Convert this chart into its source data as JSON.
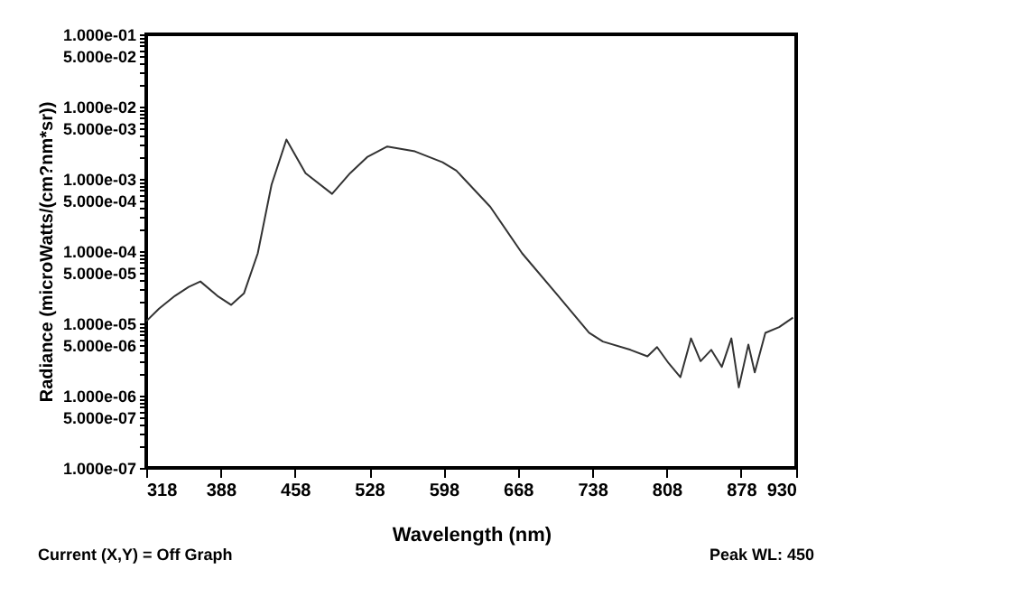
{
  "chart_data": {
    "type": "line",
    "xlabel": "Wavelength (nm)",
    "ylabel": "Radiance (microWatts/(cm?nm*sr))",
    "annotations": [
      "Current (X,Y) = Off Graph",
      "Peak WL:  450"
    ],
    "log": true,
    "grid": false,
    "marker": "none",
    "line_style": "solid",
    "xlim": [
      318,
      930
    ],
    "xticks": [
      318,
      388,
      458,
      528,
      598,
      668,
      738,
      808,
      878,
      930
    ],
    "ylim": [
      1e-07,
      0.1
    ],
    "yticks": [
      {
        "value": 0.1,
        "label": "1.000e-01"
      },
      {
        "value": 0.05,
        "label": "5.000e-02"
      },
      {
        "value": 0.01,
        "label": "1.000e-02"
      },
      {
        "value": 0.005,
        "label": "5.000e-03"
      },
      {
        "value": 0.001,
        "label": "1.000e-03"
      },
      {
        "value": 0.0005,
        "label": "5.000e-04"
      },
      {
        "value": 0.0001,
        "label": "1.000e-04"
      },
      {
        "value": 5e-05,
        "label": "5.000e-05"
      },
      {
        "value": 1e-05,
        "label": "1.000e-05"
      },
      {
        "value": 5e-06,
        "label": "5.000e-06"
      },
      {
        "value": 1e-06,
        "label": "1.000e-06"
      },
      {
        "value": 5e-07,
        "label": "5.000e-07"
      },
      {
        "value": 1e-07,
        "label": "1.000e-07"
      },
      {
        "value": 0.02,
        "label": null
      },
      {
        "value": 0.03,
        "label": null
      },
      {
        "value": 0.04,
        "label": null
      },
      {
        "value": 0.06,
        "label": null
      },
      {
        "value": 0.07,
        "label": null
      },
      {
        "value": 0.08,
        "label": null
      },
      {
        "value": 0.09,
        "label": null
      },
      {
        "value": 0.002,
        "label": null
      },
      {
        "value": 0.003,
        "label": null
      },
      {
        "value": 0.004,
        "label": null
      },
      {
        "value": 0.006,
        "label": null
      },
      {
        "value": 0.007,
        "label": null
      },
      {
        "value": 0.008,
        "label": null
      },
      {
        "value": 0.009,
        "label": null
      },
      {
        "value": 0.0002,
        "label": null
      },
      {
        "value": 0.0003,
        "label": null
      },
      {
        "value": 0.0004,
        "label": null
      },
      {
        "value": 0.0006,
        "label": null
      },
      {
        "value": 0.0007,
        "label": null
      },
      {
        "value": 0.0008,
        "label": null
      },
      {
        "value": 0.0009,
        "label": null
      },
      {
        "value": 2e-05,
        "label": null
      },
      {
        "value": 3e-05,
        "label": null
      },
      {
        "value": 4e-05,
        "label": null
      },
      {
        "value": 6e-05,
        "label": null
      },
      {
        "value": 7e-05,
        "label": null
      },
      {
        "value": 8e-05,
        "label": null
      },
      {
        "value": 9e-05,
        "label": null
      },
      {
        "value": 2e-06,
        "label": null
      },
      {
        "value": 3e-06,
        "label": null
      },
      {
        "value": 4e-06,
        "label": null
      },
      {
        "value": 6e-06,
        "label": null
      },
      {
        "value": 7e-06,
        "label": null
      },
      {
        "value": 8e-06,
        "label": null
      },
      {
        "value": 9e-06,
        "label": null
      },
      {
        "value": 2e-07,
        "label": null
      },
      {
        "value": 3e-07,
        "label": null
      },
      {
        "value": 4e-07,
        "label": null
      },
      {
        "value": 6e-07,
        "label": null
      },
      {
        "value": 7e-07,
        "label": null
      },
      {
        "value": 8e-07,
        "label": null
      },
      {
        "value": 9e-07,
        "label": null
      }
    ],
    "series": [
      {
        "color": "#333333",
        "x": [
          318,
          330,
          345,
          358,
          369,
          385,
          398,
          410,
          423,
          436,
          450,
          468,
          493,
          510,
          526,
          545,
          571,
          597,
          610,
          642,
          672,
          704,
          735,
          748,
          774,
          790,
          799,
          810,
          821,
          831,
          840,
          850,
          860,
          869,
          876,
          885,
          891,
          901,
          914,
          927
        ],
        "values": [
          1.07e-05,
          1.6e-05,
          2.4e-05,
          3.2e-05,
          3.8e-05,
          2.4e-05,
          1.8e-05,
          2.6e-05,
          9.3e-05,
          0.00083,
          0.0035,
          0.0012,
          0.00062,
          0.0012,
          0.002,
          0.0028,
          0.0024,
          0.0017,
          0.0013,
          0.00041,
          9.3e-05,
          2.6e-05,
          7.4e-06,
          5.6e-06,
          4.3e-06,
          3.5e-06,
          4.7e-06,
          2.8e-06,
          1.8e-06,
          6.2e-06,
          3e-06,
          4.3e-06,
          2.5e-06,
          6.2e-06,
          1.3e-06,
          5.1e-06,
          2.1e-06,
          7.4e-06,
          8.9e-06,
          1.2e-05
        ]
      }
    ]
  }
}
